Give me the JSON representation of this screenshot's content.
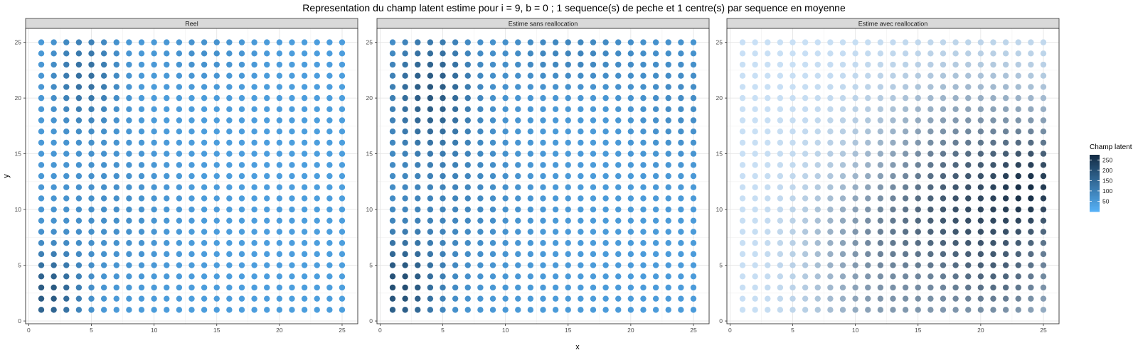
{
  "title": "Representation du champ latent estime pour i = 9, b = 0 ; 1 sequence(s) de peche et 1 centre(s) par sequence en moyenne",
  "chart_data": {
    "type": "scatter",
    "facets": [
      "Reel",
      "Estime sans reallocation",
      "Estime avec reallocation"
    ],
    "xlabel": "x",
    "ylabel": "y",
    "xlim": [
      -0.25,
      26.25
    ],
    "ylim": [
      -0.25,
      26.25
    ],
    "xticks": [
      0,
      5,
      10,
      15,
      20,
      25
    ],
    "yticks": [
      0,
      5,
      10,
      15,
      20,
      25
    ],
    "grid": true,
    "grid_x": [
      1,
      25
    ],
    "grid_y": [
      1,
      25
    ],
    "legend": {
      "title": "Champ latent",
      "position": "right",
      "ticks": [
        50,
        100,
        150,
        200,
        250
      ],
      "range": [
        0,
        275
      ],
      "color_low": "#56B1F7",
      "color_high": "#132B43"
    },
    "panel_color_low": [
      "#56B1F7",
      "#56B1F7",
      "#cfe6fb"
    ],
    "fields": [
      {
        "facet": "Reel",
        "base": 40,
        "hotspots": [
          {
            "x": 1.5,
            "y": 2.5,
            "amp": 140,
            "sx": 1.8,
            "sy": 2.5
          },
          {
            "x": 4.5,
            "y": 22,
            "amp": 95,
            "sx": 1.8,
            "sy": 3.0
          },
          {
            "x": 6,
            "y": 10,
            "amp": 30,
            "sx": 4,
            "sy": 5
          },
          {
            "x": 14,
            "y": 24,
            "amp": 25,
            "sx": 3,
            "sy": 2
          }
        ]
      },
      {
        "facet": "Estime sans reallocation",
        "base": 45,
        "hotspots": [
          {
            "x": 1.5,
            "y": 3,
            "amp": 150,
            "sx": 2.2,
            "sy": 3.0
          },
          {
            "x": 4,
            "y": 21,
            "amp": 125,
            "sx": 2.2,
            "sy": 3.5
          },
          {
            "x": 5,
            "y": 12,
            "amp": 45,
            "sx": 4,
            "sy": 6
          },
          {
            "x": 15,
            "y": 24,
            "amp": 45,
            "sx": 4,
            "sy": 2.2
          },
          {
            "x": 24,
            "y": 20,
            "amp": 30,
            "sx": 3,
            "sy": 4
          }
        ]
      },
      {
        "facet": "Estime avec reallocation",
        "base": 8,
        "hotspots": [
          {
            "x": 20,
            "y": 10.5,
            "amp": 215,
            "sx": 6.0,
            "sy": 6.5
          },
          {
            "x": 24.5,
            "y": 12.5,
            "amp": 100,
            "sx": 2.0,
            "sy": 3.0
          },
          {
            "x": 11,
            "y": 6,
            "amp": 70,
            "sx": 3.5,
            "sy": 4
          },
          {
            "x": 22,
            "y": 3,
            "amp": 60,
            "sx": 3,
            "sy": 2.5
          },
          {
            "x": 13,
            "y": 1,
            "amp": 40,
            "sx": 4,
            "sy": 1.5
          }
        ]
      }
    ]
  }
}
